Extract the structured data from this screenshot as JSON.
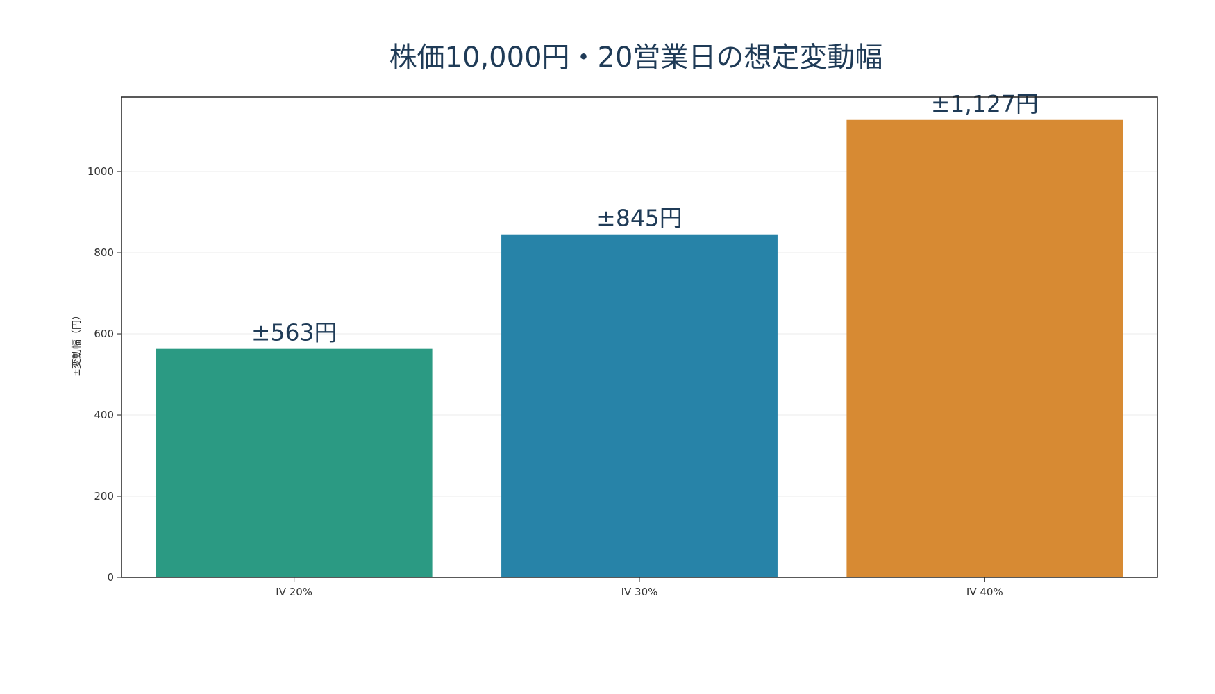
{
  "chart_data": {
    "type": "bar",
    "title": "株価10,000円・20営業日の想定変動幅",
    "xlabel": "",
    "ylabel": "±変動幅（円）",
    "categories": [
      "IV 20%",
      "IV 30%",
      "IV 40%"
    ],
    "values": [
      563,
      845,
      1127
    ],
    "bar_labels": [
      "±563円",
      "±845円",
      "±1,127円"
    ],
    "colors": [
      "#2b9a83",
      "#2783a8",
      "#d78a33"
    ],
    "ylim": [
      0,
      1183
    ],
    "yticks": [
      0,
      200,
      400,
      600,
      800,
      1000
    ],
    "grid": true,
    "legend": false
  }
}
